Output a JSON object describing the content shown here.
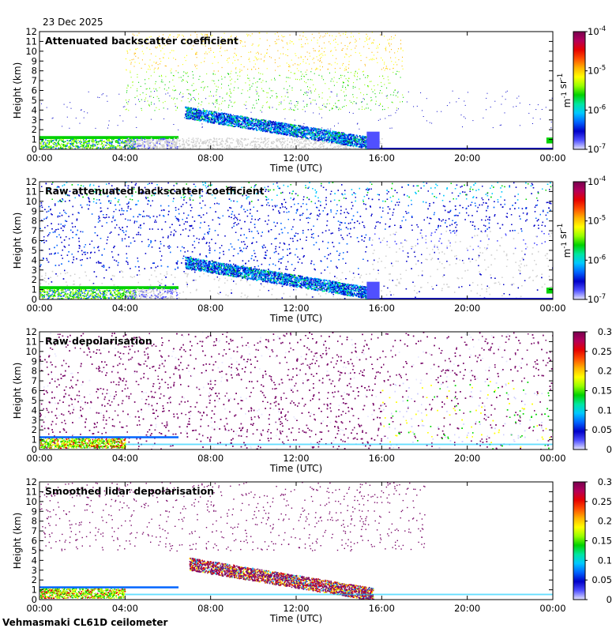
{
  "header": {
    "date": "23 Dec 2025"
  },
  "footer": {
    "station": "Vehmasmaki CL61D ceilometer"
  },
  "colors": {
    "spectrum": [
      "#e6e6ff",
      "#5050ff",
      "#0000c8",
      "#0064ff",
      "#00c8ff",
      "#00e6a0",
      "#00d200",
      "#96ff00",
      "#ffff00",
      "#ffb400",
      "#ff5000",
      "#e60000",
      "#b4005a",
      "#780050"
    ],
    "cloud_gray": "#d0d0d0",
    "depol_purple": "#7a0a6a"
  },
  "chart_data": [
    {
      "type": "heatmap",
      "title": "Attenuated backscatter coefficient",
      "xlabel": "Time (UTC)",
      "ylabel": "Height (km)",
      "x_ticks": [
        "00:00",
        "04:00",
        "08:00",
        "12:00",
        "16:00",
        "20:00",
        "00:00"
      ],
      "y_ticks": [
        "0",
        "1",
        "2",
        "3",
        "4",
        "5",
        "6",
        "7",
        "8",
        "9",
        "10",
        "11",
        "12"
      ],
      "xlim_hours": [
        0,
        24
      ],
      "ylim_km": [
        0,
        12
      ],
      "colorbar": {
        "scale": "log",
        "ticks": [
          "10^-7",
          "10^-6",
          "10^-5",
          "10^-4"
        ],
        "label": "m^-1 sr^-1"
      },
      "pattern": "clean"
    },
    {
      "type": "heatmap",
      "title": "Raw attenuated backscatter coefficient",
      "xlabel": "Time (UTC)",
      "ylabel": "Height (km)",
      "x_ticks": [
        "00:00",
        "04:00",
        "08:00",
        "12:00",
        "16:00",
        "20:00",
        "00:00"
      ],
      "y_ticks": [
        "0",
        "1",
        "2",
        "3",
        "4",
        "5",
        "6",
        "7",
        "8",
        "9",
        "10",
        "11",
        "12"
      ],
      "xlim_hours": [
        0,
        24
      ],
      "ylim_km": [
        0,
        12
      ],
      "colorbar": {
        "scale": "log",
        "ticks": [
          "10^-7",
          "10^-6",
          "10^-5",
          "10^-4"
        ],
        "label": "m^-1 sr^-1"
      },
      "pattern": "noisy"
    },
    {
      "type": "heatmap",
      "title": "Raw depolarisation",
      "xlabel": "Time (UTC)",
      "ylabel": "Height (km)",
      "x_ticks": [
        "00:00",
        "04:00",
        "08:00",
        "12:00",
        "16:00",
        "20:00",
        "00:00"
      ],
      "y_ticks": [
        "0",
        "1",
        "2",
        "3",
        "4",
        "5",
        "6",
        "7",
        "8",
        "9",
        "10",
        "11",
        "12"
      ],
      "xlim_hours": [
        0,
        24
      ],
      "ylim_km": [
        0,
        12
      ],
      "colorbar": {
        "scale": "linear",
        "ticks": [
          "0",
          "0.05",
          "0.1",
          "0.15",
          "0.2",
          "0.25",
          "0.3"
        ],
        "range": [
          0,
          0.3
        ]
      },
      "pattern": "depol_raw"
    },
    {
      "type": "heatmap",
      "title": "Smoothed lidar depolarisation",
      "xlabel": "Time (UTC)",
      "ylabel": "Height (km)",
      "x_ticks": [
        "00:00",
        "04:00",
        "08:00",
        "12:00",
        "16:00",
        "20:00",
        "00:00"
      ],
      "y_ticks": [
        "0",
        "1",
        "2",
        "3",
        "4",
        "5",
        "6",
        "7",
        "8",
        "9",
        "10",
        "11",
        "12"
      ],
      "xlim_hours": [
        0,
        24
      ],
      "ylim_km": [
        0,
        12
      ],
      "colorbar": {
        "scale": "linear",
        "ticks": [
          "0",
          "0.05",
          "0.1",
          "0.15",
          "0.2",
          "0.25",
          "0.3"
        ],
        "range": [
          0,
          0.3
        ]
      },
      "pattern": "depol_smooth"
    }
  ]
}
